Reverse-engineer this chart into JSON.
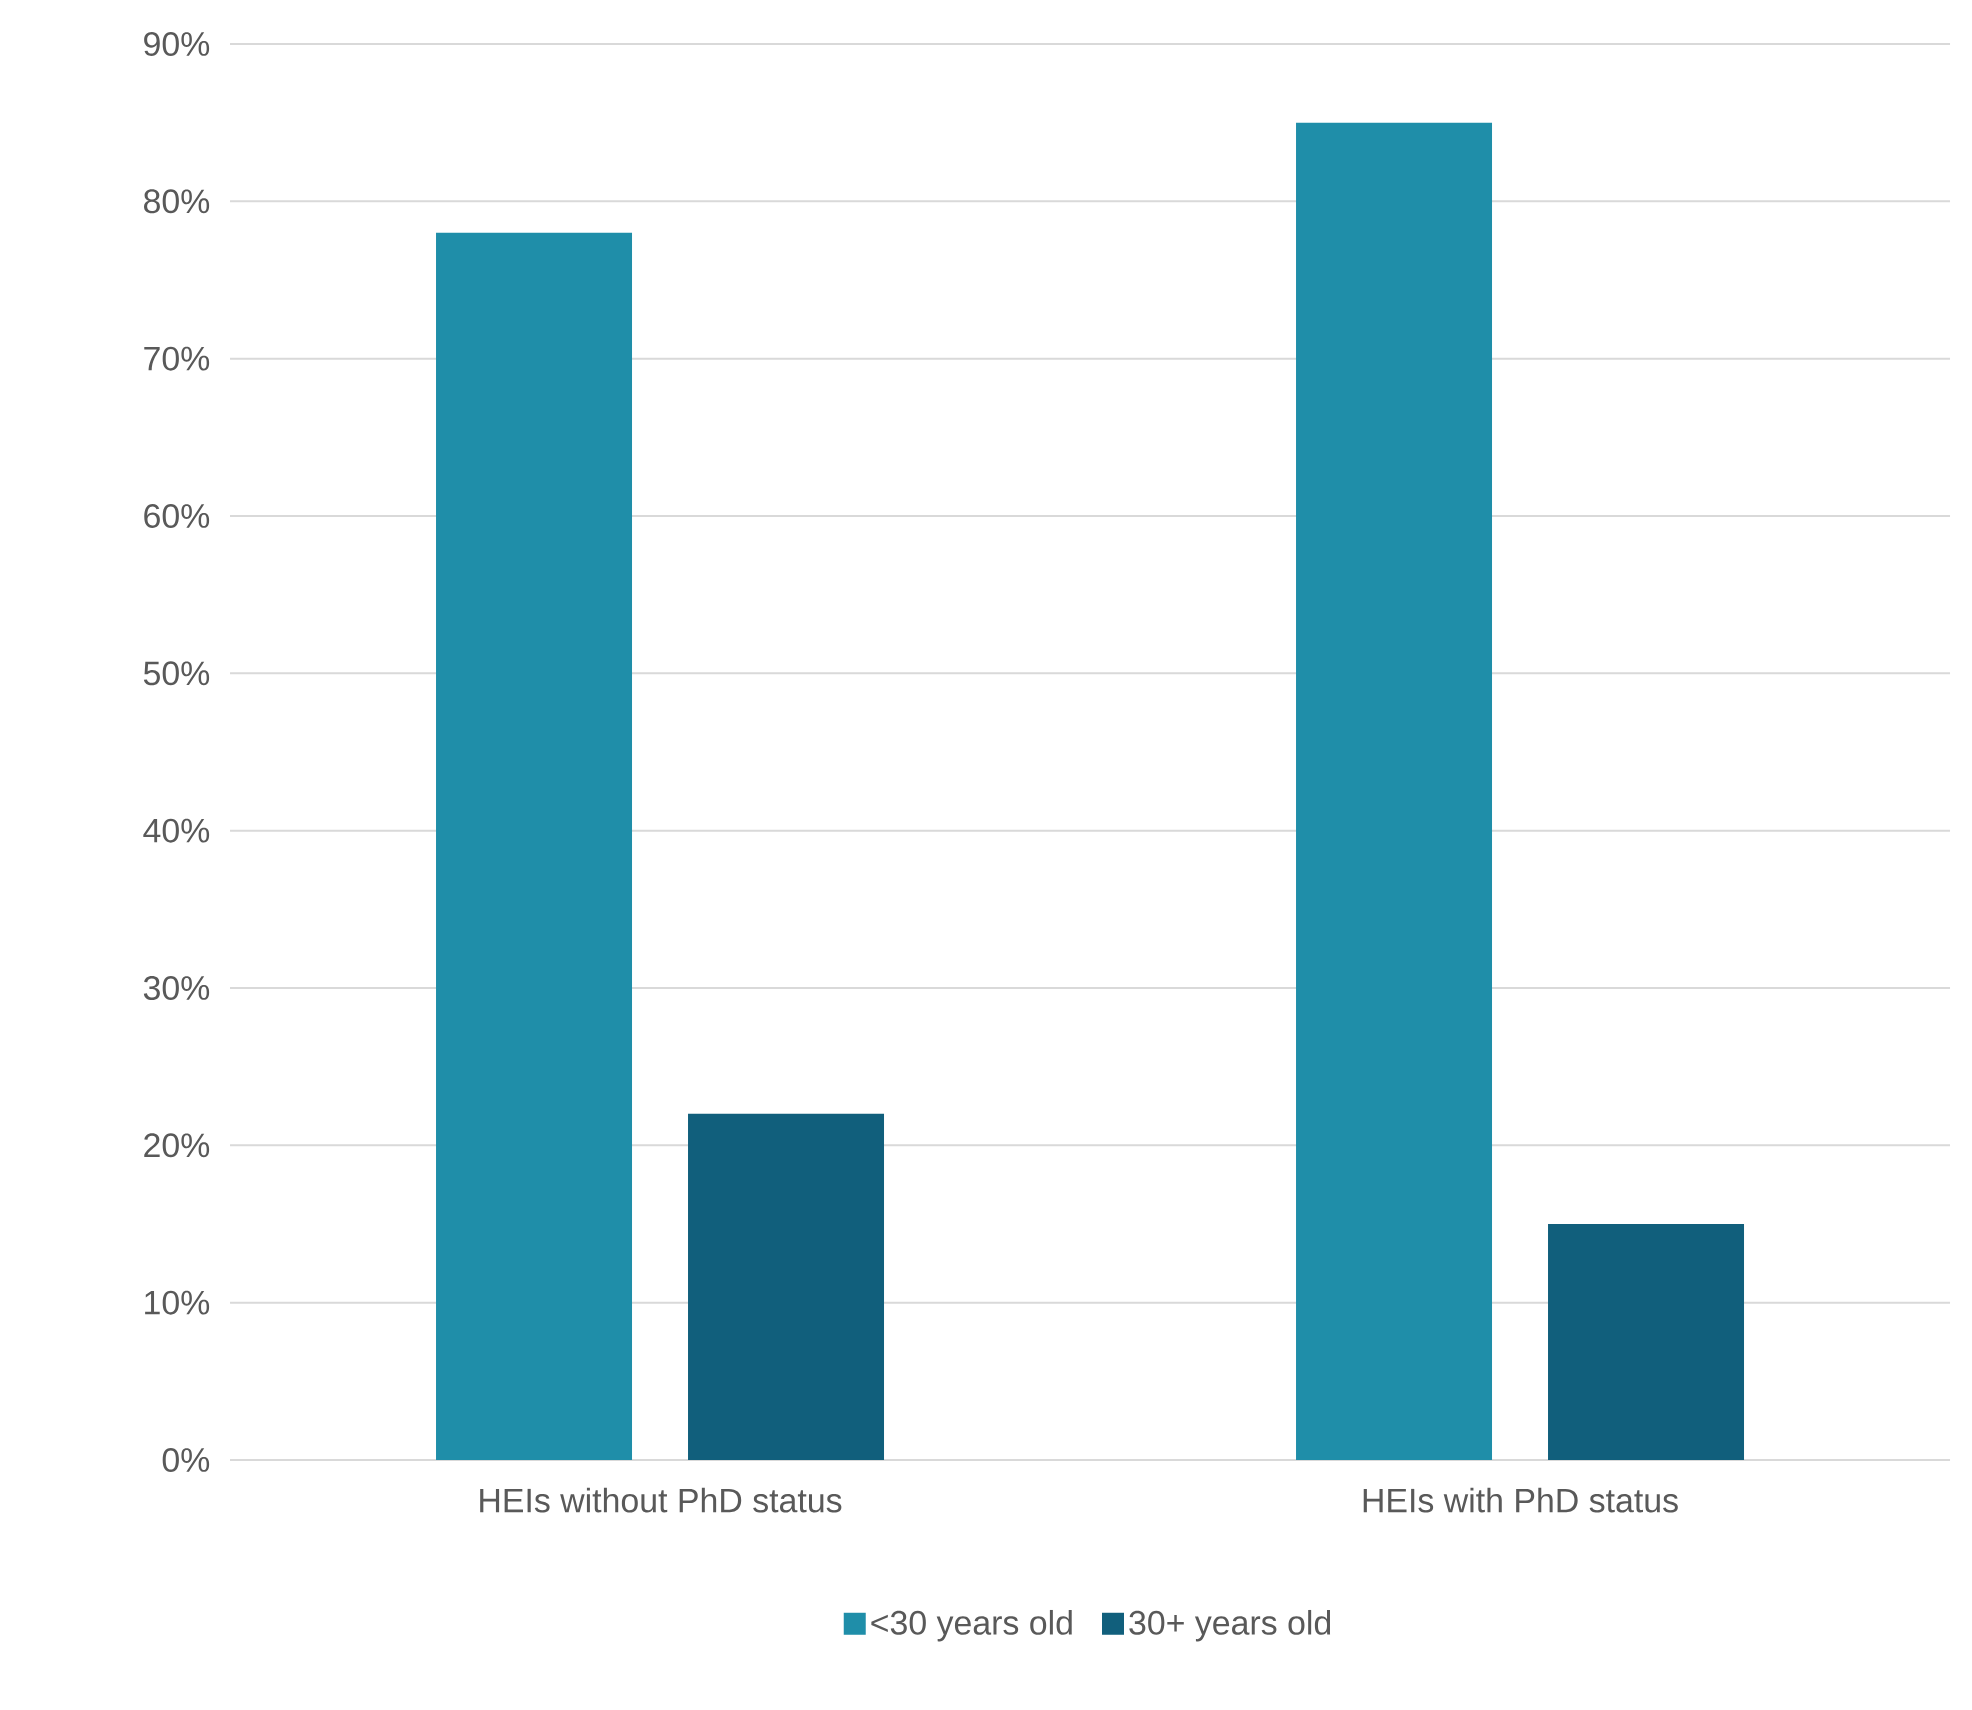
{
  "chart_data": {
    "type": "bar",
    "categories": [
      "HEIs without PhD status",
      "HEIs with PhD status"
    ],
    "series": [
      {
        "name": "<30 years old",
        "color": "#1f8ea9",
        "values": [
          78,
          85
        ]
      },
      {
        "name": "30+ years old",
        "color": "#115f7c",
        "values": [
          22,
          15
        ]
      }
    ],
    "ylim": [
      0,
      90
    ],
    "yticks": [
      {
        "value": 0,
        "label": "0%"
      },
      {
        "value": 10,
        "label": "10%"
      },
      {
        "value": 20,
        "label": "20%"
      },
      {
        "value": 30,
        "label": "30%"
      },
      {
        "value": 40,
        "label": "40%"
      },
      {
        "value": 50,
        "label": "50%"
      },
      {
        "value": 60,
        "label": "60%"
      },
      {
        "value": 70,
        "label": "70%"
      },
      {
        "value": 80,
        "label": "80%"
      },
      {
        "value": 90,
        "label": "90%"
      }
    ],
    "grid": "y",
    "legend": "bottom"
  }
}
